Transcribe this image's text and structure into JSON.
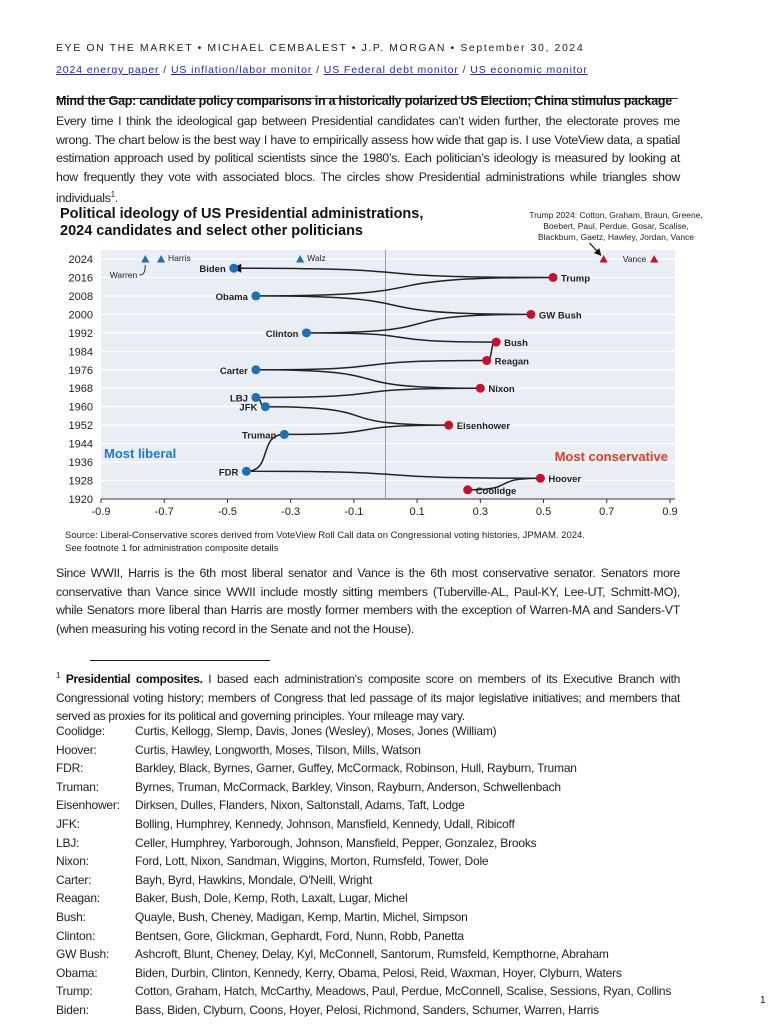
{
  "header": {
    "text": "EYE ON THE MARKET • MICHAEL CEMBALEST • J.P. MORGAN • September 30, 2024"
  },
  "links": [
    {
      "label": "2024 energy paper"
    },
    {
      "label": "US inflation/labor monitor"
    },
    {
      "label": "US Federal debt monitor"
    },
    {
      "label": "US economic monitor"
    }
  ],
  "link_separator": "/",
  "title": "Mind the Gap: candidate policy comparisons in a historically polarized US Election; China stimulus package",
  "para1": "Every time I think the ideological gap between Presidential candidates can’t widen further, the electorate proves me wrong.  The chart below is the best way I have to empirically assess how wide that gap is.  I use VoteView data, a spatial estimation approach used by political scientists since the 1980’s.  Each politician’s ideology is measured by looking at how frequently they vote with associated blocs.  The circles show Presidential administrations while triangles show individuals",
  "para1_footnote_ref": "1",
  "para1_end": ".",
  "para2": "Since WWII, Harris is the 6th most liberal senator and Vance is the 6th most conservative senator.  Senators more conservative than Vance since WWII include mostly sitting members (Tuberville-AL, Paul-KY, Lee-UT, Schmitt-MO), while Senators more liberal than Harris are mostly former members with the exception of Warren-MA and Sanders-VT (when measuring his voting record in the Senate and not the House).",
  "footnote": {
    "mark": "1",
    "bold": "Presidential composites.",
    "text": "  I based each administration's composite score on members of its Executive Branch with Congressional voting history; members of Congress that led passage of its major legislative initiatives; and members that served as proxies for its political and governing principles.  Your mileage may vary."
  },
  "composites": [
    {
      "k": "Coolidge:",
      "v": "Curtis, Kellogg, Slemp, Davis, Jones (Wesley), Moses, Jones (William)"
    },
    {
      "k": "Hoover:",
      "v": "Curtis, Hawley, Longworth, Moses, Tilson, Mills, Watson"
    },
    {
      "k": "FDR:",
      "v": "Barkley, Black, Byrnes, Garner, Guffey, McCormack, Robinson, Hull, Rayburn, Truman"
    },
    {
      "k": "Truman:",
      "v": "Byrnes, Truman, McCormack, Barkley, Vinson, Rayburn, Anderson, Schwellenbach"
    },
    {
      "k": "Eisenhower:",
      "v": "Dirksen, Dulles, Flanders, Nixon, Saltonstall, Adams, Taft, Lodge"
    },
    {
      "k": "JFK:",
      "v": "Bolling, Humphrey, Kennedy, Johnson, Mansfield, Kennedy, Udall, Ribicoff"
    },
    {
      "k": "LBJ:",
      "v": "Celler, Humphrey, Yarborough, Johnson, Mansfield, Pepper, Gonzalez, Brooks"
    },
    {
      "k": "Nixon:",
      "v": "Ford, Lott, Nixon, Sandman, Wiggins, Morton, Rumsfeld, Tower, Dole"
    },
    {
      "k": "Carter:",
      "v": "Bayh, Byrd, Hawkins, Mondale, O'Neill, Wright"
    },
    {
      "k": "Reagan:",
      "v": "Baker, Bush, Dole, Kemp, Roth, Laxalt, Lugar, Michel"
    },
    {
      "k": "Bush:",
      "v": "Quayle, Bush, Cheney, Madigan, Kemp, Martin, Michel, Simpson"
    },
    {
      "k": "Clinton:",
      "v": "Bentsen, Gore, Glickman, Gephardt, Ford, Nunn, Robb, Panetta"
    },
    {
      "k": "GW Bush:",
      "v": "Ashcroft, Blunt, Cheney, Delay, Kyl, McConnell, Santorum, Rumsfeld, Kempthorne, Abraham"
    },
    {
      "k": "Obama:",
      "v": "Biden, Durbin, Clinton, Kennedy, Kerry, Obama, Pelosi, Reid, Waxman, Hoyer, Clyburn, Waters"
    },
    {
      "k": "Trump:",
      "v": "Cotton, Graham, Hatch, McCarthy, Meadows, Paul, Perdue, McConnell, Scalise, Sessions, Ryan, Collins"
    },
    {
      "k": "Biden:",
      "v": "Bass, Biden, Clyburn, Coons, Hoyer, Pelosi, Richmond, Sanders, Schumer, Warren, Harris"
    }
  ],
  "page_number": "1",
  "chart_data": {
    "type": "scatter",
    "title_line1": "Political ideology of US Presidential administrations,",
    "title_line2": "2024 candidates and select other politicians",
    "annotation_trump2024": "Trump 2024: Cotton, Graham, Braun, Greene, Boebert, Paul, Perdue, Gosar, Scalise, Blackburn, Gaetz, Hawley, Jordan, Vance",
    "annotation_trump2024_lines": [
      "Trump 2024: Cotton, Graham, Braun, Greene,",
      "Boebert, Paul, Perdue, Gosar, Scalise,",
      "Blackburn, Gaetz, Hawley, Jordan, Vance"
    ],
    "label_liberal": "Most liberal",
    "label_conservative": "Most conservative",
    "xlim": [
      -0.9,
      0.9
    ],
    "ylim": [
      1920,
      2024
    ],
    "xticks": [
      "-0.9",
      "-0.7",
      "-0.5",
      "-0.3",
      "-0.1",
      "0.1",
      "0.3",
      "0.5",
      "0.7",
      "0.9"
    ],
    "yticks": [
      "2024",
      "2016",
      "2008",
      "2000",
      "1992",
      "1984",
      "1976",
      "1968",
      "1960",
      "1952",
      "1944",
      "1936",
      "1928",
      "1920"
    ],
    "grid": "horizontal",
    "colors": {
      "liberal": "#1f6fb4",
      "conservative": "#c8102e",
      "background": "#e8eef4",
      "liberal_text": "#1f78c8",
      "conservative_text": "#e0401f"
    },
    "administrations": [
      {
        "name": "Coolidge",
        "year": 1924,
        "score": 0.26,
        "party": "R"
      },
      {
        "name": "Hoover",
        "year": 1929,
        "score": 0.49,
        "party": "R"
      },
      {
        "name": "FDR",
        "year": 1932,
        "score": -0.44,
        "party": "D"
      },
      {
        "name": "Truman",
        "year": 1948,
        "score": -0.32,
        "party": "D"
      },
      {
        "name": "Eisenhower",
        "year": 1952,
        "score": 0.2,
        "party": "R"
      },
      {
        "name": "JFK",
        "year": 1960,
        "score": -0.38,
        "party": "D"
      },
      {
        "name": "LBJ",
        "year": 1964,
        "score": -0.41,
        "party": "D"
      },
      {
        "name": "Nixon",
        "year": 1968,
        "score": 0.3,
        "party": "R"
      },
      {
        "name": "Carter",
        "year": 1976,
        "score": -0.41,
        "party": "D"
      },
      {
        "name": "Reagan",
        "year": 1980,
        "score": 0.32,
        "party": "R"
      },
      {
        "name": "Bush",
        "year": 1988,
        "score": 0.35,
        "party": "R"
      },
      {
        "name": "Clinton",
        "year": 1992,
        "score": -0.25,
        "party": "D"
      },
      {
        "name": "GW Bush",
        "year": 2000,
        "score": 0.46,
        "party": "R"
      },
      {
        "name": "Obama",
        "year": 2008,
        "score": -0.41,
        "party": "D"
      },
      {
        "name": "Trump",
        "year": 2016,
        "score": 0.53,
        "party": "R"
      },
      {
        "name": "Biden",
        "year": 2020,
        "score": -0.48,
        "party": "D"
      }
    ],
    "individuals": [
      {
        "name": "Warren",
        "year": 2024,
        "score": -0.76,
        "party": "D"
      },
      {
        "name": "Harris",
        "year": 2024,
        "score": -0.71,
        "party": "D"
      },
      {
        "name": "Walz",
        "year": 2024,
        "score": -0.27,
        "party": "D"
      },
      {
        "name": "Trump 2024",
        "year": 2024,
        "score": 0.69,
        "party": "R"
      },
      {
        "name": "Vance",
        "year": 2024,
        "score": 0.85,
        "party": "R"
      }
    ],
    "source_line1": "Source: Liberal-Conservative scores derived from VoteView Roll Call data on Congressional voting histories, JPMAM. 2024.",
    "source_line2": "See footnote 1 for administration composite details"
  }
}
